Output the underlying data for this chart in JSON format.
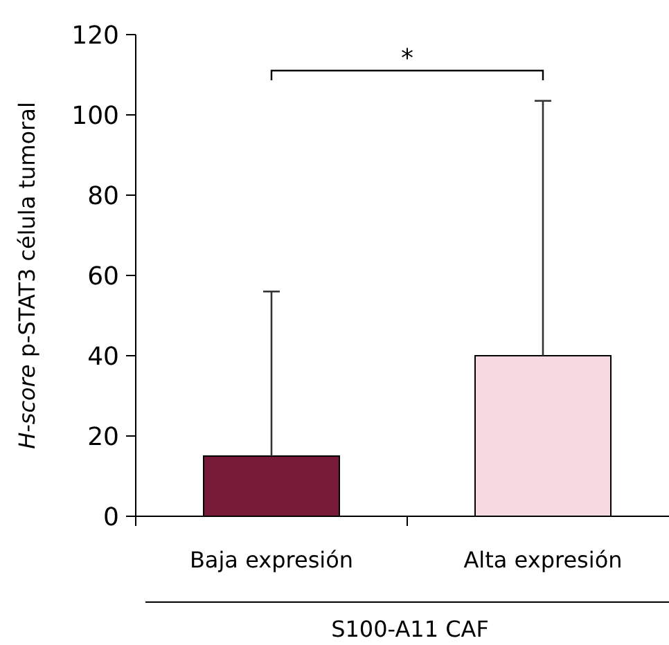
{
  "chart_data": {
    "type": "bar",
    "categories": [
      "Baja expresión",
      "Alta expresión"
    ],
    "values": [
      15,
      40
    ],
    "colors": [
      "#761a37",
      "#f7d9e2"
    ],
    "errors": [
      [
        15,
        56
      ],
      [
        40,
        103.5
      ]
    ],
    "ylim": [
      0,
      120
    ],
    "yticks": [
      0,
      20,
      40,
      60,
      80,
      100,
      120
    ],
    "ylabel": "H-score p-STAT3 célula tumoral",
    "xlabel": "S100-A11 CAF",
    "annotations": [
      "*"
    ],
    "grid": false
  }
}
